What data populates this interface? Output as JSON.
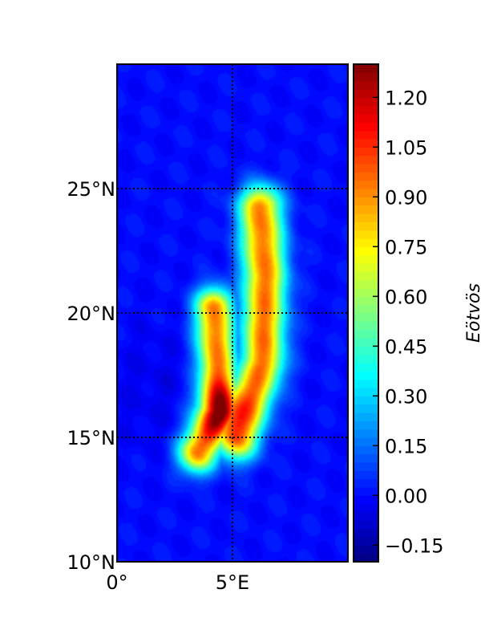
{
  "chart_data": {
    "type": "heatmap",
    "projection": "cylindrical",
    "lon_range": [
      0,
      10
    ],
    "lat_range": [
      10,
      30
    ],
    "lat_ticks": [
      {
        "value": 10,
        "label": "10°N"
      },
      {
        "value": 15,
        "label": "15°N"
      },
      {
        "value": 20,
        "label": "20°N"
      },
      {
        "value": 25,
        "label": "25°N"
      }
    ],
    "lon_ticks": [
      {
        "value": 0,
        "label": "0°"
      },
      {
        "value": 5,
        "label": "5°E"
      }
    ],
    "grid_lines": {
      "lat": [
        15,
        20,
        25
      ],
      "lon": [
        5
      ],
      "style": "dotted"
    },
    "colormap": "jet",
    "value_range": [
      -0.2,
      1.3
    ],
    "colorbar": {
      "label": "Eötvös",
      "placement": "right",
      "ticks": [
        {
          "value": -0.15,
          "label": "−0.15"
        },
        {
          "value": 0.0,
          "label": "0.00"
        },
        {
          "value": 0.15,
          "label": "0.15"
        },
        {
          "value": 0.3,
          "label": "0.30"
        },
        {
          "value": 0.45,
          "label": "0.45"
        },
        {
          "value": 0.6,
          "label": "0.60"
        },
        {
          "value": 0.75,
          "label": "0.75"
        },
        {
          "value": 0.9,
          "label": "0.90"
        },
        {
          "value": 1.05,
          "label": "1.05"
        },
        {
          "value": 1.2,
          "label": "1.20"
        }
      ]
    },
    "background_value": 0.0,
    "anomaly_paths": [
      {
        "id": "eastern-arm",
        "amplitude": 0.95,
        "width_deg": 0.95,
        "points": [
          [
            5.2,
            15.0
          ],
          [
            6.3,
            18.0
          ],
          [
            6.4,
            21.5
          ],
          [
            6.2,
            24.2
          ]
        ]
      },
      {
        "id": "western-arm",
        "amplitude": 0.95,
        "width_deg": 0.85,
        "points": [
          [
            3.5,
            14.4
          ],
          [
            4.5,
            16.0
          ],
          [
            4.3,
            18.5
          ],
          [
            4.2,
            20.2
          ]
        ]
      }
    ],
    "anomaly_peaks": [
      {
        "id": "main-peak",
        "lon": 4.4,
        "lat": 16.1,
        "amplitude": 0.45,
        "spread_deg": 0.75
      }
    ]
  }
}
